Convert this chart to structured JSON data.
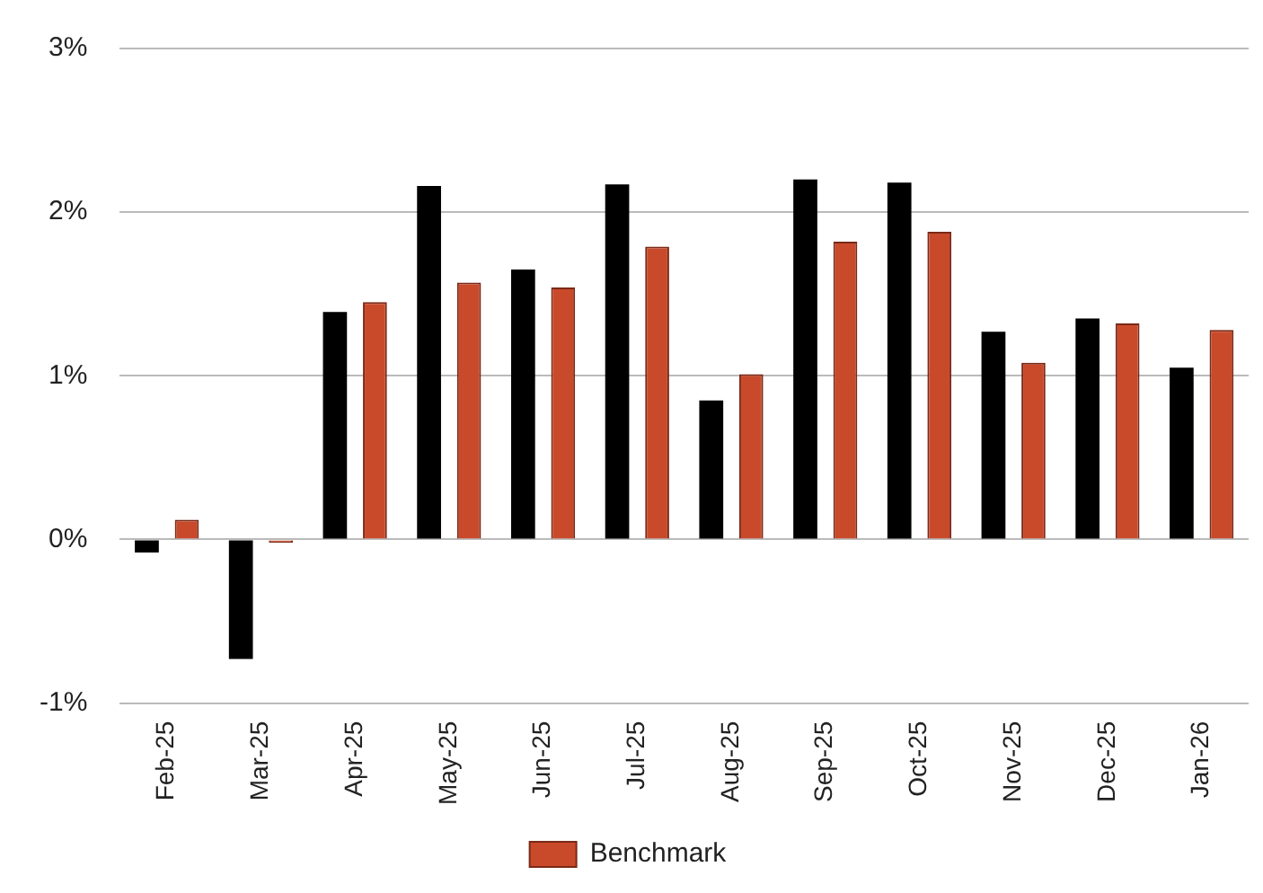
{
  "chart_data": {
    "type": "bar",
    "categories": [
      "Feb-25",
      "Mar-25",
      "Apr-25",
      "May-25",
      "Jun-25",
      "Jul-25",
      "Aug-25",
      "Sep-25",
      "Oct-25",
      "Nov-25",
      "Dec-25",
      "Jan-26"
    ],
    "series": [
      {
        "color": "#000000",
        "values": [
          -0.08,
          -0.73,
          1.39,
          2.16,
          1.65,
          2.17,
          0.85,
          2.2,
          2.18,
          1.27,
          1.35,
          1.05
        ]
      },
      {
        "name": "Benchmark",
        "color": "#c94a2a",
        "values": [
          0.12,
          -0.02,
          1.45,
          1.57,
          1.54,
          1.79,
          1.01,
          1.82,
          1.88,
          1.08,
          1.32,
          1.28
        ]
      }
    ],
    "ylim": [
      -1,
      3
    ],
    "yticks": [
      {
        "value": -1,
        "label": "-1%"
      },
      {
        "value": 0,
        "label": "0%"
      },
      {
        "value": 1,
        "label": "1%"
      },
      {
        "value": 2,
        "label": "2%"
      },
      {
        "value": 3,
        "label": "3%"
      }
    ],
    "grid": "y",
    "legend": "bottom"
  }
}
